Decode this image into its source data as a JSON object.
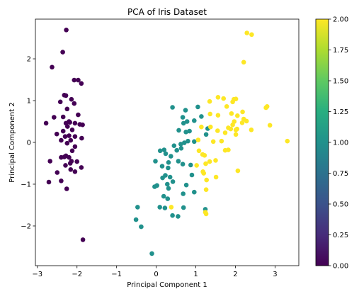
{
  "chart_data": {
    "type": "scatter",
    "title": "PCA of Iris Dataset",
    "xlabel": "Principal Component 1",
    "ylabel": "Principal Component 2",
    "xlim": [
      -3.05,
      3.6
    ],
    "ylim": [
      -2.95,
      2.95
    ],
    "xticks": [
      -3,
      -2,
      -1,
      0,
      1,
      2,
      3
    ],
    "yticks": [
      -2,
      -1,
      0,
      1,
      2
    ],
    "grid": false,
    "colorbar": {
      "cmap": "viridis",
      "range": [
        0.0,
        2.0
      ],
      "ticks": [
        "0.00",
        "0.25",
        "0.50",
        "0.75",
        "1.00",
        "1.25",
        "1.50",
        "1.75",
        "2.00"
      ]
    },
    "marker_colors": {
      "0": "#440154",
      "1": "#21918c",
      "2": "#fde725"
    },
    "points": [
      [
        -2.27,
        2.69,
        0
      ],
      [
        -2.36,
        2.16,
        0
      ],
      [
        -2.63,
        1.8,
        0
      ],
      [
        -2.07,
        1.49,
        0
      ],
      [
        -1.97,
        1.49,
        0
      ],
      [
        -1.89,
        1.41,
        0
      ],
      [
        -2.32,
        1.13,
        0
      ],
      [
        -2.28,
        1.12,
        0
      ],
      [
        -2.14,
        1.03,
        0
      ],
      [
        -2.42,
        0.97,
        0
      ],
      [
        -2.07,
        0.93,
        0
      ],
      [
        -2.25,
        0.8,
        0
      ],
      [
        -2.58,
        0.6,
        0
      ],
      [
        -2.35,
        0.61,
        0
      ],
      [
        -1.97,
        0.66,
        0
      ],
      [
        -2.78,
        0.46,
        0
      ],
      [
        -2.28,
        0.46,
        0
      ],
      [
        -2.2,
        0.5,
        0
      ],
      [
        -2.18,
        0.48,
        0
      ],
      [
        -2.05,
        0.46,
        0
      ],
      [
        -1.93,
        0.43,
        0
      ],
      [
        -1.86,
        0.42,
        0
      ],
      [
        -2.24,
        0.38,
        0
      ],
      [
        -2.12,
        0.3,
        0
      ],
      [
        -2.35,
        0.27,
        0
      ],
      [
        -2.51,
        0.2,
        0
      ],
      [
        -2.3,
        0.14,
        0
      ],
      [
        -2.2,
        0.16,
        0
      ],
      [
        -2.05,
        0.14,
        0
      ],
      [
        -2.4,
        0.05,
        0
      ],
      [
        -1.88,
        0.1,
        0
      ],
      [
        -2.16,
        0.05,
        0
      ],
      [
        -2.25,
        -0.02,
        0
      ],
      [
        -2.05,
        -0.1,
        0
      ],
      [
        -2.12,
        -0.2,
        0
      ],
      [
        -2.28,
        -0.32,
        0
      ],
      [
        -2.32,
        -0.35,
        0
      ],
      [
        -2.2,
        -0.36,
        0
      ],
      [
        -2.4,
        -0.36,
        0
      ],
      [
        -2.68,
        -0.45,
        0
      ],
      [
        -2.14,
        -0.45,
        0
      ],
      [
        -2.0,
        -0.46,
        0
      ],
      [
        -2.17,
        -0.5,
        0
      ],
      [
        -2.29,
        -0.55,
        0
      ],
      [
        -1.89,
        -0.6,
        0
      ],
      [
        -2.16,
        -0.65,
        0
      ],
      [
        -2.05,
        -0.7,
        0
      ],
      [
        -2.5,
        -0.72,
        0
      ],
      [
        -2.71,
        -0.95,
        0
      ],
      [
        -2.4,
        -0.92,
        0
      ],
      [
        -2.26,
        -1.11,
        0
      ],
      [
        -1.85,
        -2.33,
        0
      ],
      [
        0.41,
        0.84,
        1
      ],
      [
        0.74,
        0.77,
        1
      ],
      [
        1.05,
        0.85,
        1
      ],
      [
        1.14,
        0.62,
        1
      ],
      [
        0.67,
        0.6,
        1
      ],
      [
        0.78,
        0.5,
        1
      ],
      [
        0.96,
        0.52,
        1
      ],
      [
        0.69,
        0.46,
        1
      ],
      [
        1.3,
        0.33,
        1
      ],
      [
        0.84,
        0.27,
        1
      ],
      [
        0.75,
        0.25,
        1
      ],
      [
        0.57,
        0.29,
        1
      ],
      [
        1.26,
        0.19,
        1
      ],
      [
        0.8,
        0.03,
        1
      ],
      [
        0.96,
        0.02,
        1
      ],
      [
        0.71,
        -0.01,
        1
      ],
      [
        0.62,
        -0.04,
        1
      ],
      [
        0.45,
        -0.08,
        1
      ],
      [
        0.2,
        -0.18,
        1
      ],
      [
        0.1,
        -0.2,
        1
      ],
      [
        0.63,
        -0.14,
        1
      ],
      [
        0.52,
        -0.19,
        1
      ],
      [
        0.24,
        -0.27,
        1
      ],
      [
        0.37,
        -0.33,
        1
      ],
      [
        -0.02,
        -0.45,
        1
      ],
      [
        0.31,
        -0.48,
        1
      ],
      [
        0.15,
        -0.57,
        1
      ],
      [
        0.56,
        -0.45,
        1
      ],
      [
        0.67,
        -0.52,
        1
      ],
      [
        0.87,
        -0.54,
        1
      ],
      [
        0.3,
        -0.61,
        1
      ],
      [
        0.9,
        -0.78,
        1
      ],
      [
        0.23,
        -0.79,
        1
      ],
      [
        0.35,
        -0.83,
        1
      ],
      [
        0.16,
        -0.85,
        1
      ],
      [
        0.42,
        -0.94,
        1
      ],
      [
        0.28,
        -1.0,
        1
      ],
      [
        0.02,
        -1.03,
        1
      ],
      [
        -0.04,
        -1.06,
        1
      ],
      [
        0.76,
        -1.02,
        1
      ],
      [
        0.96,
        -1.19,
        1
      ],
      [
        0.31,
        -1.1,
        1
      ],
      [
        0.68,
        -1.23,
        1
      ],
      [
        0.19,
        -1.29,
        1
      ],
      [
        0.29,
        -1.35,
        1
      ],
      [
        0.09,
        -1.55,
        1
      ],
      [
        -0.47,
        -1.55,
        1
      ],
      [
        0.22,
        -1.57,
        1
      ],
      [
        0.69,
        -1.56,
        1
      ],
      [
        1.24,
        -1.6,
        1
      ],
      [
        -0.51,
        -1.85,
        1
      ],
      [
        0.41,
        -1.75,
        1
      ],
      [
        0.55,
        -1.77,
        1
      ],
      [
        -0.38,
        -2.02,
        1
      ],
      [
        -0.11,
        -2.66,
        1
      ],
      [
        2.29,
        2.62,
        2
      ],
      [
        2.41,
        2.58,
        2
      ],
      [
        2.21,
        1.92,
        2
      ],
      [
        1.35,
        0.98,
        2
      ],
      [
        1.56,
        1.08,
        2
      ],
      [
        1.7,
        1.05,
        2
      ],
      [
        1.93,
        0.97,
        2
      ],
      [
        1.96,
        1.03,
        2
      ],
      [
        2.01,
        1.04,
        2
      ],
      [
        1.78,
        0.86,
        2
      ],
      [
        2.18,
        0.73,
        2
      ],
      [
        2.77,
        0.83,
        2
      ],
      [
        2.8,
        0.86,
        2
      ],
      [
        1.36,
        0.68,
        2
      ],
      [
        1.9,
        0.69,
        2
      ],
      [
        2.05,
        0.64,
        2
      ],
      [
        1.56,
        0.65,
        2
      ],
      [
        2.21,
        0.56,
        2
      ],
      [
        1.97,
        0.5,
        2
      ],
      [
        1.14,
        0.37,
        2
      ],
      [
        1.37,
        0.37,
        2
      ],
      [
        1.93,
        0.42,
        2
      ],
      [
        2.28,
        0.51,
        2
      ],
      [
        1.82,
        0.35,
        2
      ],
      [
        1.88,
        0.32,
        2
      ],
      [
        1.55,
        0.28,
        2
      ],
      [
        2.01,
        0.3,
        2
      ],
      [
        2.17,
        0.47,
        2
      ],
      [
        2.4,
        0.3,
        2
      ],
      [
        2.87,
        0.41,
        2
      ],
      [
        1.74,
        0.23,
        2
      ],
      [
        2.01,
        0.19,
        2
      ],
      [
        2.04,
        0.32,
        2
      ],
      [
        3.31,
        0.03,
        2
      ],
      [
        1.65,
        0.03,
        2
      ],
      [
        1.06,
        0.06,
        2
      ],
      [
        1.44,
        0.02,
        2
      ],
      [
        1.08,
        -0.2,
        2
      ],
      [
        1.17,
        -0.29,
        2
      ],
      [
        1.22,
        -0.31,
        2
      ],
      [
        1.74,
        -0.19,
        2
      ],
      [
        1.82,
        -0.18,
        2
      ],
      [
        1.35,
        -0.46,
        2
      ],
      [
        1.5,
        -0.43,
        2
      ],
      [
        1.25,
        -0.51,
        2
      ],
      [
        1.02,
        -0.55,
        2
      ],
      [
        1.18,
        -0.7,
        2
      ],
      [
        1.2,
        -0.74,
        2
      ],
      [
        2.06,
        -0.68,
        2
      ],
      [
        1.51,
        -0.83,
        2
      ],
      [
        1.27,
        -0.9,
        2
      ],
      [
        1.26,
        -1.13,
        2
      ],
      [
        0.38,
        -1.55,
        2
      ],
      [
        1.24,
        -1.67,
        2
      ],
      [
        1.26,
        -1.71,
        2
      ]
    ]
  }
}
